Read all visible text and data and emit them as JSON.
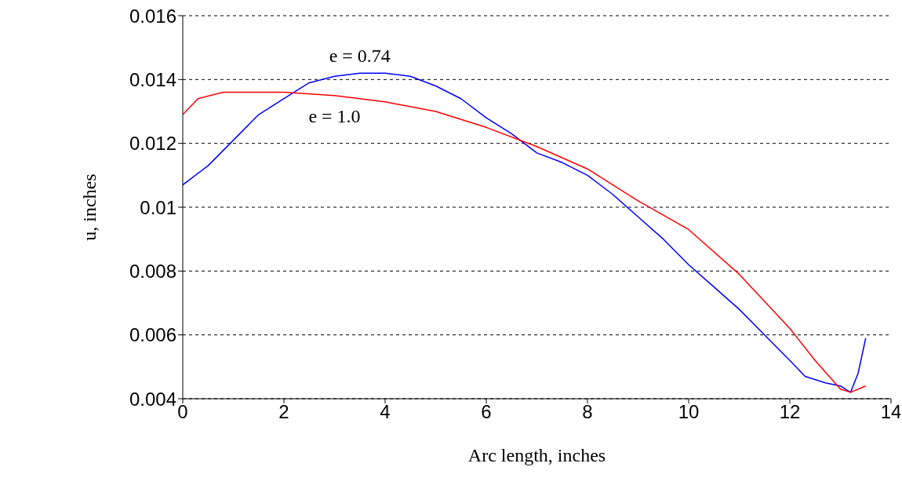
{
  "chart_data": {
    "type": "line",
    "xlabel": "Arc length, inches",
    "ylabel": "u, inches",
    "xlim": [
      0,
      14
    ],
    "xticks": [
      0,
      2,
      4,
      6,
      8,
      10,
      12,
      14
    ],
    "ylim": [
      0.004,
      0.016
    ],
    "yticks": [
      0.004,
      0.006,
      0.008,
      0.01,
      0.012,
      0.014,
      0.016
    ],
    "grid": "y",
    "marker": "none",
    "line_style": "solid",
    "series": [
      {
        "name": "e = 0.74",
        "color": "#0000ff",
        "x": [
          0,
          0.5,
          1,
          1.5,
          2,
          2.5,
          3,
          3.5,
          4,
          4.5,
          5,
          5.5,
          6,
          6.5,
          7,
          7.5,
          8,
          8.5,
          9,
          9.5,
          10,
          10.5,
          11,
          11.5,
          12,
          12.3,
          12.7,
          13,
          13.2,
          13.35,
          13.5
        ],
        "values": [
          0.0107,
          0.0113,
          0.0121,
          0.0129,
          0.0134,
          0.0139,
          0.0141,
          0.0142,
          0.0142,
          0.0141,
          0.0138,
          0.0134,
          0.0128,
          0.0123,
          0.0117,
          0.0114,
          0.011,
          0.0104,
          0.0097,
          0.009,
          0.0082,
          0.0075,
          0.0068,
          0.006,
          0.0052,
          0.0047,
          0.0045,
          0.0044,
          0.0042,
          0.0048,
          0.0059
        ]
      },
      {
        "name": "e = 1.0",
        "color": "#ff0000",
        "x": [
          0,
          0.3,
          0.8,
          1.5,
          2,
          3,
          4,
          5,
          6,
          7,
          8,
          9,
          10,
          11,
          12,
          12.5,
          13,
          13.2,
          13.5
        ],
        "values": [
          0.0129,
          0.0134,
          0.0136,
          0.0136,
          0.0136,
          0.0135,
          0.0133,
          0.013,
          0.0125,
          0.0119,
          0.0112,
          0.0102,
          0.0093,
          0.0079,
          0.0062,
          0.0052,
          0.0043,
          0.0042,
          0.0044
        ]
      }
    ]
  }
}
